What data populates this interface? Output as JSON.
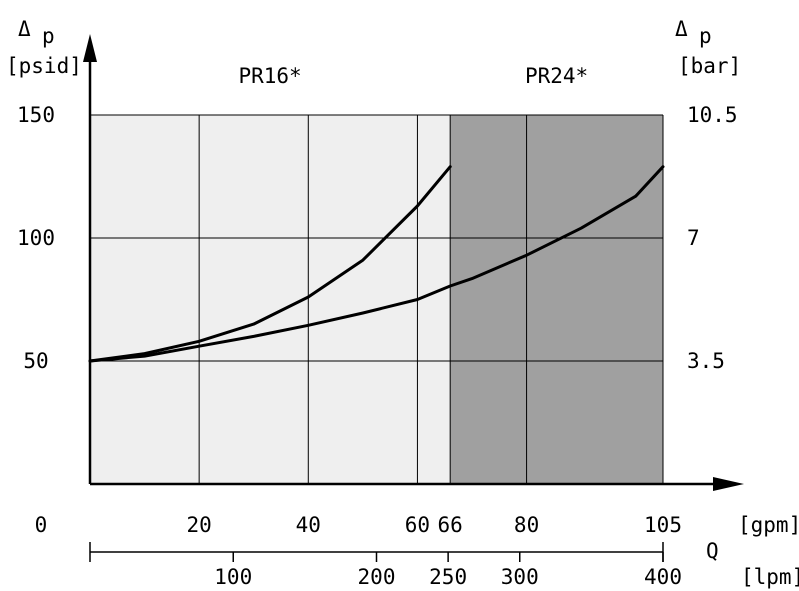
{
  "chart_data": {
    "type": "line",
    "left_axis": {
      "symbol": "Δ",
      "unit_text": "p",
      "unit": "[psid]",
      "ticks": [
        50,
        100,
        150
      ],
      "range": [
        0,
        150
      ]
    },
    "right_axis": {
      "symbol": "Δ",
      "unit_text": "p",
      "unit": "[bar]",
      "ticks": [
        "3.5",
        "7",
        "10.5"
      ]
    },
    "x_axis": {
      "symbol": "Q",
      "gpm": {
        "unit": "[gpm]",
        "ticks": [
          0,
          20,
          40,
          60,
          66,
          80,
          105
        ],
        "range": [
          0,
          105
        ]
      },
      "lpm": {
        "unit": "[lpm]",
        "ticks": [
          100,
          200,
          250,
          300,
          400
        ],
        "range": [
          0,
          400
        ]
      }
    },
    "regions": [
      {
        "label": "PR16*",
        "x_range": [
          0,
          66
        ],
        "color": "#efefef"
      },
      {
        "label": "PR24*",
        "x_range": [
          66,
          105
        ],
        "color": "#a0a0a0"
      }
    ],
    "grid": true,
    "series": [
      {
        "x": [
          0,
          10,
          20,
          30,
          40,
          50,
          60,
          66
        ],
        "y": [
          50,
          53,
          58,
          65,
          76,
          91,
          113,
          129
        ]
      },
      {
        "x": [
          0,
          10,
          20,
          30,
          40,
          50,
          60,
          66,
          70,
          80,
          90,
          100,
          105
        ],
        "y": [
          50,
          52,
          56,
          60,
          64.5,
          69.5,
          75,
          80.5,
          83.5,
          93,
          104,
          117,
          129
        ]
      }
    ]
  }
}
